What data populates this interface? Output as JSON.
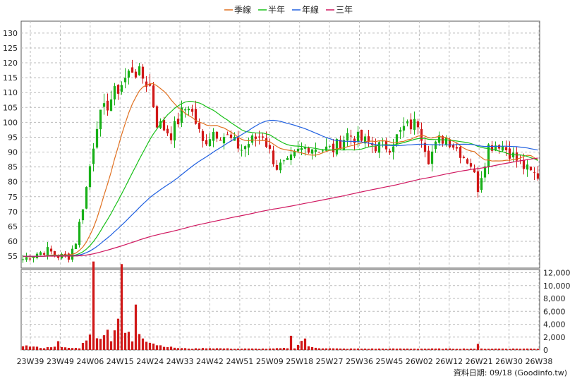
{
  "chart_data": {
    "type": "candlestick",
    "legend": [
      {
        "name": "季線",
        "color": "#e07020"
      },
      {
        "name": "半年",
        "color": "#18c018"
      },
      {
        "name": "年線",
        "color": "#2060e0"
      },
      {
        "name": "三年",
        "color": "#d01860"
      }
    ],
    "price_axis": {
      "ylim": [
        51,
        134
      ],
      "ticks": [
        55,
        60,
        65,
        70,
        75,
        80,
        85,
        90,
        95,
        100,
        105,
        110,
        115,
        120,
        125,
        130
      ]
    },
    "volume_axis": {
      "ylim": [
        0,
        12500
      ],
      "ticks": [
        "0",
        "2,000",
        "4,000",
        "6,000",
        "8,000",
        "10,000",
        "12,000"
      ]
    },
    "x_labels": [
      "23W39",
      "23W49",
      "24W06",
      "24W15",
      "24W24",
      "24W33",
      "24W42",
      "24W51",
      "25W09",
      "25W18",
      "25W27",
      "25W36",
      "25W45",
      "26W02",
      "26W12",
      "26W21",
      "26W30",
      "26W38"
    ],
    "up_color": "#18b018",
    "down_color": "#d01818",
    "volume_color": "#d01818",
    "price_anchors": [
      [
        0,
        54
      ],
      [
        4,
        56
      ],
      [
        7,
        57
      ],
      [
        10,
        55
      ],
      [
        13,
        55
      ],
      [
        15,
        60
      ],
      [
        18,
        78
      ],
      [
        21,
        100
      ],
      [
        25,
        108
      ],
      [
        28,
        113
      ],
      [
        31,
        118
      ],
      [
        34,
        115
      ],
      [
        36,
        112
      ],
      [
        38,
        100
      ],
      [
        42,
        96
      ],
      [
        45,
        103
      ],
      [
        47,
        106
      ],
      [
        49,
        100
      ],
      [
        51,
        93
      ],
      [
        54,
        97
      ],
      [
        58,
        95
      ],
      [
        62,
        91
      ],
      [
        65,
        94
      ],
      [
        68,
        96
      ],
      [
        70,
        90
      ],
      [
        72,
        85
      ],
      [
        75,
        86
      ],
      [
        78,
        90
      ],
      [
        81,
        92
      ],
      [
        85,
        91
      ],
      [
        88,
        91
      ],
      [
        92,
        96
      ],
      [
        96,
        94
      ],
      [
        100,
        92
      ],
      [
        104,
        92
      ],
      [
        108,
        98
      ],
      [
        112,
        100
      ],
      [
        115,
        88
      ],
      [
        118,
        94
      ],
      [
        120,
        95
      ],
      [
        124,
        90
      ],
      [
        127,
        86
      ],
      [
        129,
        78
      ],
      [
        132,
        92
      ],
      [
        135,
        93
      ],
      [
        138,
        90
      ],
      [
        141,
        86
      ],
      [
        144,
        83
      ],
      [
        146,
        82
      ]
    ],
    "volume_anchors": [
      [
        0,
        700
      ],
      [
        3,
        500
      ],
      [
        6,
        300
      ],
      [
        9,
        600
      ],
      [
        10,
        1200
      ],
      [
        11,
        400
      ],
      [
        14,
        300
      ],
      [
        16,
        300
      ],
      [
        18,
        1700
      ],
      [
        19,
        2800
      ],
      [
        20,
        12200
      ],
      [
        21,
        1700
      ],
      [
        23,
        2600
      ],
      [
        24,
        3000
      ],
      [
        25,
        1600
      ],
      [
        27,
        5000
      ],
      [
        28,
        11500
      ],
      [
        29,
        2600
      ],
      [
        30,
        2800
      ],
      [
        31,
        1200
      ],
      [
        32,
        7500
      ],
      [
        33,
        2700
      ],
      [
        35,
        1500
      ],
      [
        38,
        800
      ],
      [
        41,
        500
      ],
      [
        44,
        300
      ],
      [
        48,
        200
      ],
      [
        52,
        300
      ],
      [
        60,
        200
      ],
      [
        70,
        200
      ],
      [
        75,
        300
      ],
      [
        76,
        2000
      ],
      [
        77,
        300
      ],
      [
        80,
        1900
      ],
      [
        81,
        500
      ],
      [
        84,
        300
      ],
      [
        90,
        200
      ],
      [
        100,
        200
      ],
      [
        110,
        200
      ],
      [
        120,
        200
      ],
      [
        128,
        200
      ],
      [
        129,
        800
      ],
      [
        130,
        200
      ],
      [
        146,
        200
      ]
    ]
  },
  "footer": {
    "text": "資料日期: 09/18 (Goodinfo.tw)"
  }
}
